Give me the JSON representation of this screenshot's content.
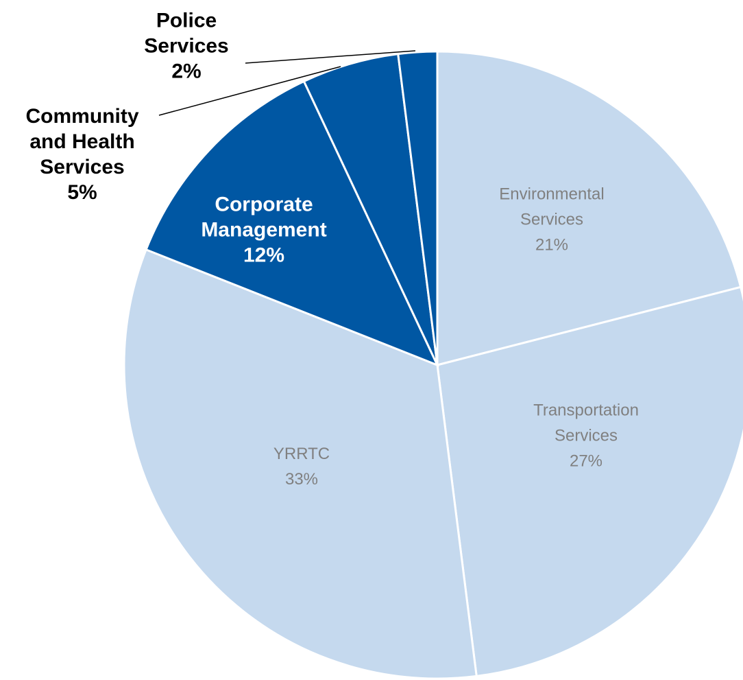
{
  "chart_data": {
    "type": "pie",
    "categories": [
      "Environmental Services",
      "Transportation Services",
      "YRRTC",
      "Corporate Management",
      "Community and Health Services",
      "Police Services"
    ],
    "values": [
      21,
      27,
      33,
      12,
      5,
      2
    ],
    "value_labels": [
      "21%",
      "27%",
      "33%",
      "12%",
      "5%",
      "2%"
    ],
    "colors": [
      "#c5d9ee",
      "#c5d9ee",
      "#c5d9ee",
      "#0057a3",
      "#0057a3",
      "#0057a3"
    ]
  }
}
